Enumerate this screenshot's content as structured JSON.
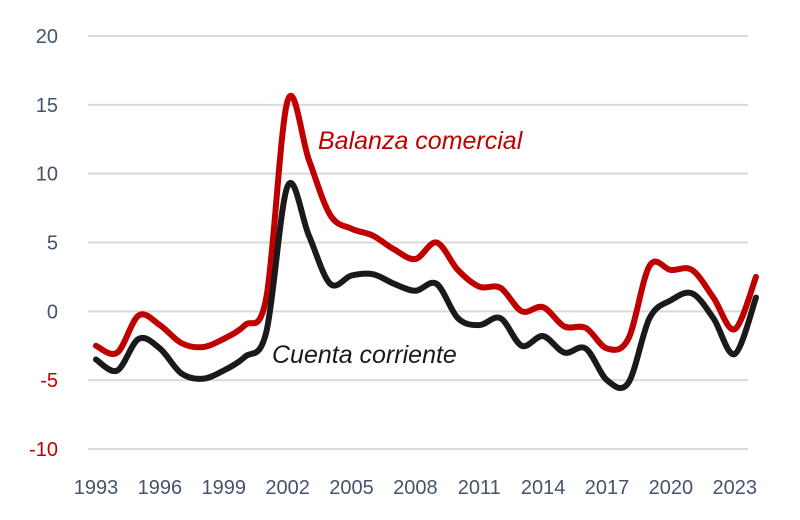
{
  "chart_data": {
    "type": "line",
    "title": "",
    "xlabel": "",
    "ylabel": "",
    "ylim": [
      -10,
      20
    ],
    "yticks": [
      20,
      15,
      10,
      5,
      0,
      -5,
      -10
    ],
    "negative_tick_color": "#c00000",
    "xticks": [
      "1993",
      "1996",
      "1999",
      "2002",
      "2005",
      "2008",
      "2011",
      "2014",
      "2017",
      "2020",
      "2023"
    ],
    "grid": true,
    "x": [
      1993,
      1994,
      1995,
      1996,
      1997,
      1998,
      1999,
      2000,
      2001,
      2002,
      2003,
      2004,
      2005,
      2006,
      2007,
      2008,
      2009,
      2010,
      2011,
      2012,
      2013,
      2014,
      2015,
      2016,
      2017,
      2018,
      2019,
      2020,
      2021,
      2022,
      2023,
      2024
    ],
    "series": [
      {
        "name": "Balanza comercial",
        "color": "#c00000",
        "values": [
          -2.5,
          -3.0,
          -0.3,
          -1.0,
          -2.3,
          -2.6,
          -2.0,
          -1.0,
          1.0,
          15.3,
          11.0,
          7.0,
          6.0,
          5.5,
          4.5,
          3.8,
          5.0,
          3.0,
          1.8,
          1.7,
          0.0,
          0.3,
          -1.1,
          -1.2,
          -2.7,
          -2.0,
          3.3,
          3.0,
          3.0,
          1.0,
          -1.3,
          2.5
        ]
      },
      {
        "name": "Cuenta corriente",
        "color": "#1a1a1a",
        "values": [
          -3.5,
          -4.3,
          -2.0,
          -2.7,
          -4.5,
          -4.9,
          -4.3,
          -3.3,
          -1.5,
          9.1,
          5.5,
          2.0,
          2.6,
          2.7,
          2.0,
          1.5,
          2.0,
          -0.5,
          -1.0,
          -0.5,
          -2.5,
          -1.8,
          -3.0,
          -2.7,
          -5.0,
          -5.2,
          -0.5,
          0.8,
          1.3,
          -0.5,
          -3.1,
          1.0
        ]
      }
    ]
  }
}
